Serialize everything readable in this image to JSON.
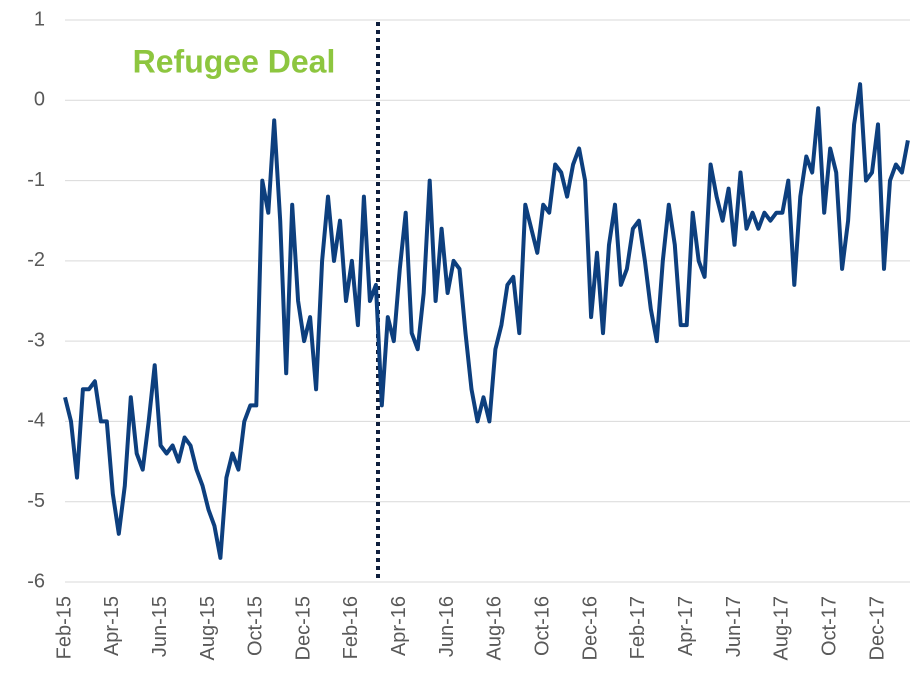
{
  "chart_data": {
    "type": "line",
    "annotation": "Refugee Deal",
    "categories": [
      "Feb-15",
      null,
      null,
      null,
      null,
      null,
      null,
      null,
      "Apr-15",
      null,
      null,
      null,
      null,
      null,
      null,
      null,
      "Jun-15",
      null,
      null,
      null,
      null,
      null,
      null,
      null,
      "Aug-15",
      null,
      null,
      null,
      null,
      null,
      null,
      null,
      "Oct-15",
      null,
      null,
      null,
      null,
      null,
      null,
      null,
      "Dec-15",
      null,
      null,
      null,
      null,
      null,
      null,
      null,
      "Feb-16",
      null,
      null,
      null,
      null,
      null,
      null,
      null,
      "Apr-16",
      null,
      null,
      null,
      null,
      null,
      null,
      null,
      "Jun-16",
      null,
      null,
      null,
      null,
      null,
      null,
      null,
      "Aug-16",
      null,
      null,
      null,
      null,
      null,
      null,
      null,
      "Oct-16",
      null,
      null,
      null,
      null,
      null,
      null,
      null,
      "Dec-16",
      null,
      null,
      null,
      null,
      null,
      null,
      null,
      "Feb-17",
      null,
      null,
      null,
      null,
      null,
      null,
      null,
      "Apr-17",
      null,
      null,
      null,
      null,
      null,
      null,
      null,
      "Jun-17",
      null,
      null,
      null,
      null,
      null,
      null,
      null,
      "Aug-17",
      null,
      null,
      null,
      null,
      null,
      null,
      null,
      "Oct-17",
      null,
      null,
      null,
      null,
      null,
      null,
      null,
      "Dec-17",
      null,
      null,
      null,
      null,
      null
    ],
    "series": [
      {
        "color": "#0d3f7e",
        "values": [
          -3.7,
          -4.0,
          -4.7,
          -3.6,
          -3.6,
          -3.5,
          -4.0,
          -4.0,
          -4.9,
          -5.4,
          -4.8,
          -3.7,
          -4.4,
          -4.6,
          -4.0,
          -3.3,
          -4.3,
          -4.4,
          -4.3,
          -4.5,
          -4.2,
          -4.3,
          -4.6,
          -4.8,
          -5.1,
          -5.3,
          -5.7,
          -4.7,
          -4.4,
          -4.6,
          -4.0,
          -3.8,
          -3.8,
          -1.0,
          -1.4,
          -0.25,
          -1.5,
          -3.4,
          -1.3,
          -2.5,
          -3.0,
          -2.7,
          -3.6,
          -2.0,
          -1.2,
          -2.0,
          -1.5,
          -2.5,
          -2.0,
          -2.8,
          -1.2,
          -2.5,
          -2.3,
          -3.8,
          -2.7,
          -3.0,
          -2.1,
          -1.4,
          -2.9,
          -3.1,
          -2.4,
          -1.0,
          -2.5,
          -1.6,
          -2.4,
          -2.0,
          -2.1,
          -2.9,
          -3.6,
          -4.0,
          -3.7,
          -4.0,
          -3.1,
          -2.8,
          -2.3,
          -2.2,
          -2.9,
          -1.3,
          -1.6,
          -1.9,
          -1.3,
          -1.4,
          -0.8,
          -0.9,
          -1.2,
          -0.8,
          -0.6,
          -1.0,
          -2.7,
          -1.9,
          -2.9,
          -1.8,
          -1.3,
          -2.3,
          -2.1,
          -1.6,
          -1.5,
          -2.0,
          -2.6,
          -3.0,
          -2.0,
          -1.3,
          -1.8,
          -2.8,
          -2.8,
          -1.4,
          -2.0,
          -2.2,
          -0.8,
          -1.2,
          -1.5,
          -1.1,
          -1.8,
          -0.9,
          -1.6,
          -1.4,
          -1.6,
          -1.4,
          -1.5,
          -1.4,
          -1.4,
          -1.0,
          -2.3,
          -1.2,
          -0.7,
          -0.9,
          -0.1,
          -1.4,
          -0.6,
          -0.9,
          -2.1,
          -1.5,
          -0.3,
          0.2,
          -1.0,
          -0.9,
          -0.3,
          -2.1,
          -1.0,
          -0.8,
          -0.9,
          -0.5
        ]
      }
    ],
    "ylim": [
      -6,
      1
    ],
    "yticks": [
      1,
      0,
      -1,
      -2,
      -3,
      -4,
      -5,
      -6
    ],
    "grid": true
  }
}
